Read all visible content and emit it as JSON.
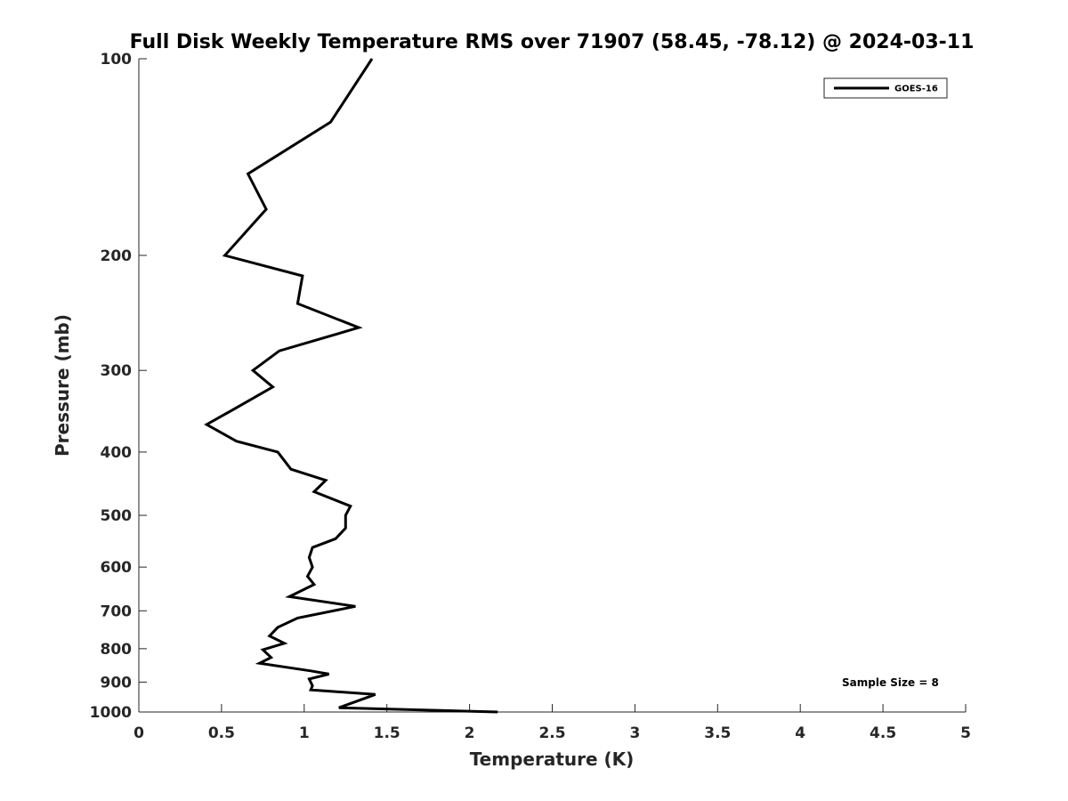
{
  "chart_data": {
    "type": "line",
    "title": "Full Disk Weekly Temperature RMS over 71907 (58.45, -78.12) @ 2024-03-11",
    "xlabel": "Temperature (K)",
    "ylabel": "Pressure (mb)",
    "xlim": [
      0,
      5
    ],
    "ylim": [
      100,
      1000
    ],
    "yscale": "log",
    "y_reversed": true,
    "xticks": [
      0,
      0.5,
      1,
      1.5,
      2,
      2.5,
      3,
      3.5,
      4,
      4.5,
      5
    ],
    "xtick_labels": [
      "0",
      "0.5",
      "1",
      "1.5",
      "2",
      "2.5",
      "3",
      "3.5",
      "4",
      "4.5",
      "5"
    ],
    "yticks": [
      100,
      200,
      300,
      400,
      500,
      600,
      700,
      800,
      900,
      1000
    ],
    "ytick_labels": [
      "100",
      "200",
      "300",
      "400",
      "500",
      "600",
      "700",
      "800",
      "900",
      "1000"
    ],
    "grid": false,
    "legend_position": "top-right",
    "annotation": "Sample Size = 8",
    "series": [
      {
        "name": "GOES-16",
        "color": "#000000",
        "points": [
          [
            1.41,
            100
          ],
          [
            1.16,
            125
          ],
          [
            0.66,
            150
          ],
          [
            0.77,
            170
          ],
          [
            0.52,
            200
          ],
          [
            0.99,
            215
          ],
          [
            0.96,
            237
          ],
          [
            1.33,
            258
          ],
          [
            0.85,
            280
          ],
          [
            0.69,
            300
          ],
          [
            0.81,
            318
          ],
          [
            0.61,
            340
          ],
          [
            0.41,
            363
          ],
          [
            0.59,
            385
          ],
          [
            0.84,
            400
          ],
          [
            0.92,
            425
          ],
          [
            1.13,
            442
          ],
          [
            1.06,
            460
          ],
          [
            1.28,
            484
          ],
          [
            1.25,
            500
          ],
          [
            1.25,
            523
          ],
          [
            1.19,
            543
          ],
          [
            1.05,
            560
          ],
          [
            1.03,
            580
          ],
          [
            1.05,
            600
          ],
          [
            1.02,
            620
          ],
          [
            1.06,
            638
          ],
          [
            0.91,
            666
          ],
          [
            1.31,
            689
          ],
          [
            0.96,
            718
          ],
          [
            0.84,
            742
          ],
          [
            0.79,
            765
          ],
          [
            0.88,
            785
          ],
          [
            0.75,
            803
          ],
          [
            0.8,
            825
          ],
          [
            0.73,
            842
          ],
          [
            1.04,
            865
          ],
          [
            1.15,
            875
          ],
          [
            1.03,
            890
          ],
          [
            1.05,
            912
          ],
          [
            1.04,
            925
          ],
          [
            1.43,
            940
          ],
          [
            1.21,
            985
          ],
          [
            2.17,
            1000
          ]
        ]
      }
    ]
  }
}
